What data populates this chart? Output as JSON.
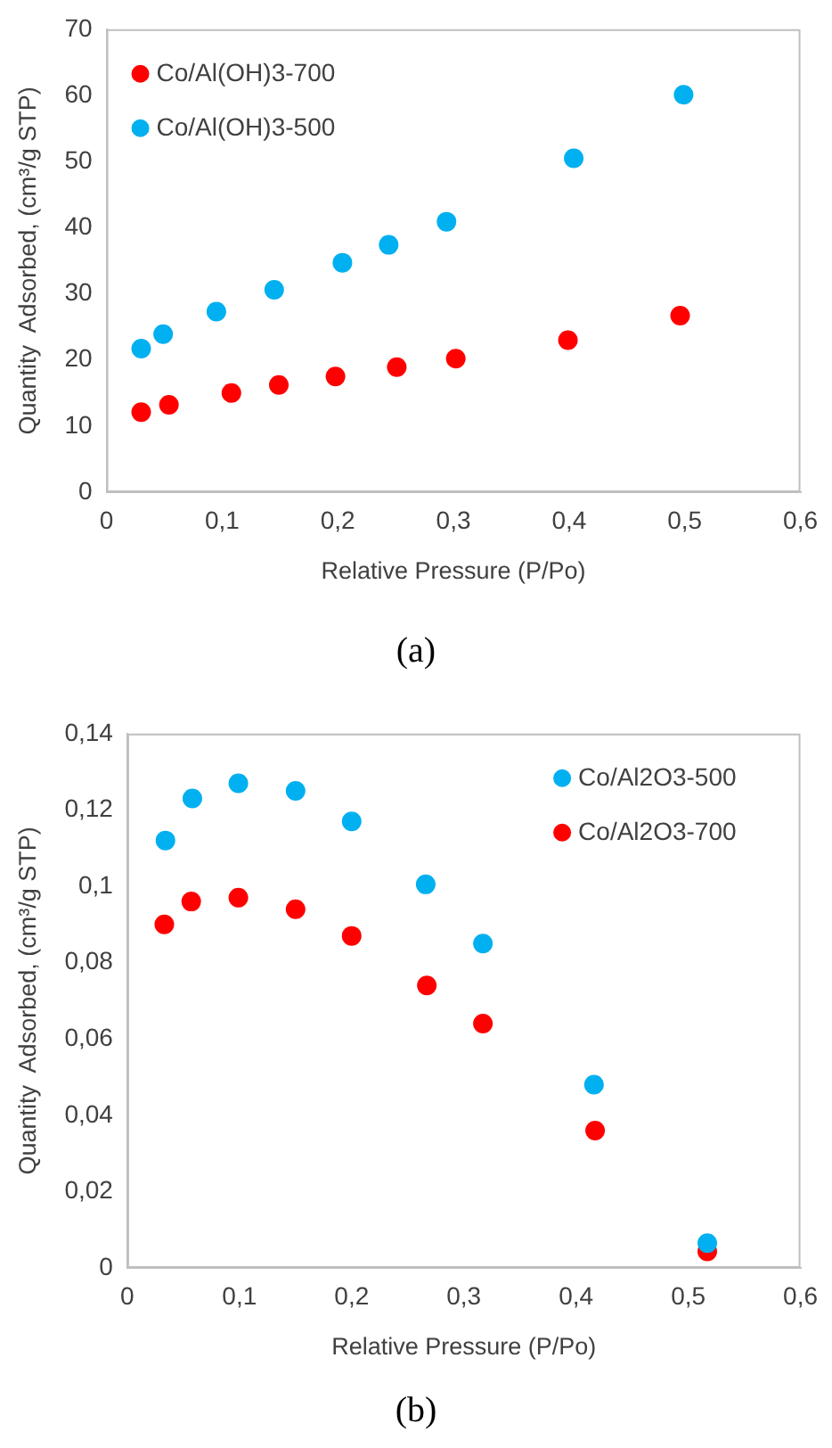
{
  "chart_data": [
    {
      "type": "scatter",
      "xlabel": "Relative Pressure (P/Po)",
      "ylabel": "Quantity  Adsorbed, (cm³/g STP)",
      "annotations": [
        "(a)"
      ],
      "xlim": [
        0,
        0.6
      ],
      "xticks": [
        0,
        {
          "value": 0.1,
          "label": "0,1"
        },
        {
          "value": 0.2,
          "label": "0,2"
        },
        {
          "value": 0.3,
          "label": "0,3"
        },
        {
          "value": 0.4,
          "label": "0,4"
        },
        {
          "value": 0.5,
          "label": "0,5"
        },
        {
          "value": 0.6,
          "label": "0,6"
        }
      ],
      "ylim": [
        0,
        70
      ],
      "yticks": [
        0,
        10,
        20,
        30,
        40,
        50,
        60,
        70
      ],
      "grid": false,
      "legend": "top left",
      "marker": "circle",
      "series": [
        {
          "name": "Co/Al(OH)3-700",
          "color": "#ff0000",
          "x": [
            0.03,
            0.054,
            0.108,
            0.149,
            0.198,
            0.251,
            0.302,
            0.399,
            0.496
          ],
          "values": [
            12.1,
            13.2,
            15.0,
            16.2,
            17.5,
            18.9,
            20.2,
            23.0,
            26.7
          ]
        },
        {
          "name": "Co/Al(OH)3-500",
          "color": "#00b0f0",
          "x": [
            0.03,
            0.049,
            0.095,
            0.145,
            0.204,
            0.244,
            0.294,
            0.404,
            0.499
          ],
          "values": [
            21.7,
            23.9,
            27.3,
            30.6,
            34.7,
            37.4,
            40.9,
            50.5,
            60.1
          ]
        }
      ]
    },
    {
      "type": "scatter",
      "xlabel": "Relative Pressure (P/Po)",
      "ylabel": "Quantity  Adsorbed, (cm³/g STP)",
      "annotations": [
        "(b)"
      ],
      "xlim": [
        0,
        0.6
      ],
      "xticks": [
        0,
        {
          "value": 0.1,
          "label": "0,1"
        },
        {
          "value": 0.2,
          "label": "0,2"
        },
        {
          "value": 0.3,
          "label": "0,3"
        },
        {
          "value": 0.4,
          "label": "0,4"
        },
        {
          "value": 0.5,
          "label": "0,5"
        },
        {
          "value": 0.6,
          "label": "0,6"
        }
      ],
      "ylim": [
        0,
        0.14
      ],
      "yticks": [
        0,
        {
          "value": 0.02,
          "label": "0,02"
        },
        {
          "value": 0.04,
          "label": "0,04"
        },
        {
          "value": 0.06,
          "label": "0,06"
        },
        {
          "value": 0.08,
          "label": "0,08"
        },
        {
          "value": 0.1,
          "label": "0,1"
        },
        {
          "value": 0.12,
          "label": "0,12"
        },
        {
          "value": 0.14,
          "label": "0,14"
        }
      ],
      "grid": false,
      "legend": "top right",
      "marker": "circle",
      "series": [
        {
          "name": "Co/Al2O3-500",
          "color": "#00b0f0",
          "x": [
            0.034,
            0.058,
            0.099,
            0.15,
            0.2,
            0.266,
            0.317,
            0.416,
            0.517
          ],
          "values": [
            0.112,
            0.123,
            0.127,
            0.125,
            0.117,
            0.1005,
            0.085,
            0.048,
            0.0065
          ]
        },
        {
          "name": "Co/Al2O3-700",
          "color": "#ff0000",
          "x": [
            0.033,
            0.057,
            0.099,
            0.15,
            0.2,
            0.267,
            0.317,
            0.417,
            0.517
          ],
          "values": [
            0.09,
            0.096,
            0.097,
            0.094,
            0.087,
            0.074,
            0.064,
            0.036,
            0.0043
          ]
        }
      ]
    }
  ]
}
